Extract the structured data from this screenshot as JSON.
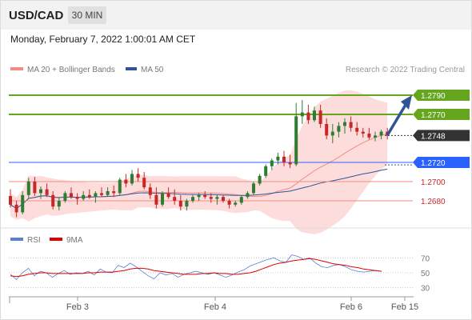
{
  "header": {
    "symbol": "USD/CAD",
    "timeframe": "30 MIN"
  },
  "datetime": "Monday, February 7, 2022 1:00:01 AM CET",
  "legend": [
    {
      "label": "MA 20 + Bollinger Bands",
      "color": "#f28b82"
    },
    {
      "label": "MA 50",
      "color": "#2f5597"
    }
  ],
  "copyright": "Research © 2022 Trading Central",
  "colors": {
    "up": "#2e7d32",
    "down": "#c62828",
    "resistance": "#66a61e",
    "support": "#2962ff",
    "target": "#f28b82",
    "arrow": "#2f5597",
    "current": "#333333"
  },
  "chart_data": {
    "type": "candlestick",
    "price_range": [
      1.2655,
      1.2805
    ],
    "levels": [
      {
        "value": 1.279,
        "label": "1.2790",
        "kind": "resistance"
      },
      {
        "value": 1.277,
        "label": "1.2770",
        "kind": "resistance"
      },
      {
        "value": 1.2748,
        "label": "1.2748",
        "kind": "current"
      },
      {
        "value": 1.272,
        "label": "1.2720",
        "kind": "pivot"
      },
      {
        "value": 1.27,
        "label": "1.2700",
        "kind": "target"
      },
      {
        "value": 1.268,
        "label": "1.2680",
        "kind": "target"
      }
    ],
    "x_ticks": [
      "Feb 3",
      "Feb 4",
      "Feb 6",
      "Feb 15"
    ],
    "series": [
      {
        "name": "MA 20 + Bollinger Bands"
      },
      {
        "name": "MA 50"
      }
    ],
    "candles": [
      [
        1.2685,
        1.2692,
        1.2673,
        1.2676
      ],
      [
        1.2676,
        1.268,
        1.2663,
        1.2668
      ],
      [
        1.2668,
        1.269,
        1.2666,
        1.2686
      ],
      [
        1.2686,
        1.2704,
        1.2683,
        1.27
      ],
      [
        1.27,
        1.2705,
        1.2685,
        1.2688
      ],
      [
        1.2688,
        1.2695,
        1.2682,
        1.2692
      ],
      [
        1.2692,
        1.2698,
        1.2684,
        1.2686
      ],
      [
        1.2686,
        1.269,
        1.2671,
        1.2674
      ],
      [
        1.2674,
        1.2684,
        1.267,
        1.268
      ],
      [
        1.268,
        1.269,
        1.2678,
        1.2688
      ],
      [
        1.2688,
        1.2694,
        1.2682,
        1.2684
      ],
      [
        1.2684,
        1.2688,
        1.2676,
        1.2682
      ],
      [
        1.2682,
        1.269,
        1.268,
        1.2686
      ],
      [
        1.2686,
        1.2692,
        1.2682,
        1.2684
      ],
      [
        1.2684,
        1.269,
        1.2678,
        1.2688
      ],
      [
        1.2688,
        1.2694,
        1.2684,
        1.2686
      ],
      [
        1.2686,
        1.2694,
        1.2684,
        1.269
      ],
      [
        1.269,
        1.2696,
        1.2684,
        1.2688
      ],
      [
        1.2688,
        1.2704,
        1.2686,
        1.2702
      ],
      [
        1.2702,
        1.2708,
        1.2694,
        1.2698
      ],
      [
        1.2698,
        1.2712,
        1.2696,
        1.2708
      ],
      [
        1.2708,
        1.2714,
        1.27,
        1.2704
      ],
      [
        1.2704,
        1.271,
        1.2692,
        1.2694
      ],
      [
        1.2694,
        1.2698,
        1.2682,
        1.2686
      ],
      [
        1.2686,
        1.2694,
        1.2672,
        1.2676
      ],
      [
        1.2676,
        1.269,
        1.2674,
        1.2688
      ],
      [
        1.2688,
        1.2694,
        1.2682,
        1.2684
      ],
      [
        1.2684,
        1.2692,
        1.2676,
        1.268
      ],
      [
        1.268,
        1.2686,
        1.267,
        1.2674
      ],
      [
        1.2674,
        1.2682,
        1.267,
        1.268
      ],
      [
        1.268,
        1.2686,
        1.2678,
        1.2684
      ],
      [
        1.2684,
        1.2688,
        1.268,
        1.2686
      ],
      [
        1.2686,
        1.269,
        1.2682,
        1.2684
      ],
      [
        1.2684,
        1.2688,
        1.2678,
        1.2682
      ],
      [
        1.2682,
        1.2686,
        1.2676,
        1.2684
      ],
      [
        1.2684,
        1.2686,
        1.2678,
        1.268
      ],
      [
        1.268,
        1.2682,
        1.2672,
        1.2676
      ],
      [
        1.2676,
        1.268,
        1.2674,
        1.2678
      ],
      [
        1.2678,
        1.2686,
        1.2676,
        1.2684
      ],
      [
        1.2684,
        1.269,
        1.2682,
        1.2688
      ],
      [
        1.2688,
        1.27,
        1.2686,
        1.2698
      ],
      [
        1.2698,
        1.2708,
        1.2696,
        1.2706
      ],
      [
        1.2706,
        1.2718,
        1.2704,
        1.2716
      ],
      [
        1.2716,
        1.2724,
        1.2712,
        1.2722
      ],
      [
        1.2722,
        1.273,
        1.2718,
        1.2726
      ],
      [
        1.2726,
        1.2732,
        1.2716,
        1.272
      ],
      [
        1.272,
        1.2728,
        1.2714,
        1.2718
      ],
      [
        1.2718,
        1.2782,
        1.2716,
        1.2768
      ],
      [
        1.2768,
        1.2785,
        1.276,
        1.2772
      ],
      [
        1.2772,
        1.278,
        1.276,
        1.2764
      ],
      [
        1.2764,
        1.2778,
        1.2762,
        1.2774
      ],
      [
        1.2774,
        1.278,
        1.2756,
        1.276
      ],
      [
        1.276,
        1.2766,
        1.2744,
        1.2748
      ],
      [
        1.2748,
        1.276,
        1.274,
        1.2752
      ],
      [
        1.2752,
        1.2762,
        1.2746,
        1.2758
      ],
      [
        1.2758,
        1.2766,
        1.275,
        1.2762
      ],
      [
        1.2762,
        1.2768,
        1.2752,
        1.2756
      ],
      [
        1.2756,
        1.2762,
        1.2748,
        1.2752
      ],
      [
        1.2752,
        1.2756,
        1.2746,
        1.275
      ],
      [
        1.275,
        1.2756,
        1.2744,
        1.2746
      ],
      [
        1.2746,
        1.2752,
        1.2742,
        1.2748
      ],
      [
        1.2748,
        1.2754,
        1.2744,
        1.2752
      ],
      [
        1.2752,
        1.2756,
        1.2744,
        1.2748
      ]
    ],
    "rsi": {
      "name": "RSI",
      "name_ma": "9MA",
      "ticks": [
        70,
        50,
        30
      ],
      "range": [
        20,
        80
      ],
      "rsi_values": [
        48,
        41,
        50,
        56,
        46,
        52,
        50,
        44,
        49,
        53,
        48,
        50,
        49,
        52,
        47,
        55,
        51,
        50,
        60,
        57,
        63,
        58,
        52,
        46,
        42,
        50,
        47,
        49,
        44,
        48,
        50,
        52,
        50,
        48,
        50,
        47,
        44,
        47,
        51,
        54,
        59,
        62,
        65,
        68,
        70,
        66,
        64,
        74,
        72,
        68,
        70,
        63,
        58,
        57,
        60,
        61,
        58,
        54,
        52,
        51,
        52,
        53,
        52
      ],
      "ma_values": [
        46,
        45,
        46,
        48,
        49,
        50,
        50,
        49,
        49,
        49,
        49,
        49,
        49,
        50,
        50,
        51,
        51,
        51,
        52,
        53,
        55,
        56,
        56,
        55,
        53,
        52,
        51,
        50,
        49,
        48,
        48,
        48,
        49,
        49,
        50,
        49,
        49,
        48,
        48,
        49,
        50,
        52,
        55,
        58,
        61,
        63,
        64,
        66,
        67,
        68,
        69,
        68,
        66,
        64,
        62,
        61,
        60,
        58,
        57,
        55,
        54,
        53,
        52
      ]
    }
  }
}
